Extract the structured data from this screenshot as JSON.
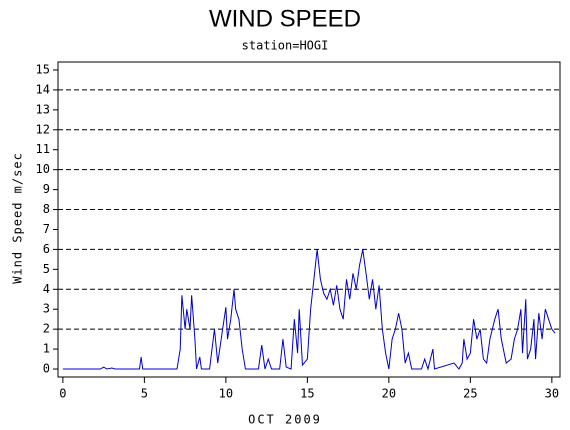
{
  "chart_data": {
    "type": "line",
    "title": "WIND SPEED",
    "subtitle": "station=HOGI",
    "x_label": "OCT 2009",
    "y_label": "Wind Speed m/sec",
    "xlim": [
      -0.3,
      30.5
    ],
    "ylim": [
      -0.4,
      15.4
    ],
    "xticks": [
      0,
      5,
      10,
      15,
      20,
      25,
      30
    ],
    "yticks": [
      0,
      1,
      2,
      3,
      4,
      5,
      6,
      7,
      8,
      9,
      10,
      11,
      12,
      13,
      14,
      15
    ],
    "grid_lines": [
      2,
      4,
      6,
      8,
      10,
      12,
      14
    ],
    "series": [
      {
        "color": "#0000cc",
        "x": [
          0,
          2.3,
          2.5,
          2.7,
          3.0,
          3.2,
          4.7,
          4.8,
          4.9,
          7.0,
          7.2,
          7.3,
          7.5,
          7.6,
          7.8,
          7.9,
          8.1,
          8.2,
          8.4,
          8.5,
          9.0,
          9.3,
          9.5,
          9.8,
          10.0,
          10.1,
          10.3,
          10.5,
          10.6,
          10.8,
          11.0,
          11.2,
          12.0,
          12.2,
          12.4,
          12.6,
          12.8,
          13.3,
          13.5,
          13.7,
          14.0,
          14.2,
          14.4,
          14.5,
          14.7,
          15.0,
          15.2,
          15.4,
          15.6,
          15.8,
          16.0,
          16.2,
          16.4,
          16.6,
          16.8,
          17.0,
          17.2,
          17.4,
          17.6,
          17.8,
          18.0,
          18.2,
          18.4,
          18.6,
          18.8,
          19.0,
          19.2,
          19.4,
          19.6,
          19.8,
          20.0,
          20.2,
          20.4,
          20.6,
          20.8,
          21.0,
          21.2,
          21.4,
          22.0,
          22.2,
          22.4,
          22.7,
          22.8,
          24.0,
          24.3,
          24.5,
          24.6,
          24.8,
          25.0,
          25.2,
          25.4,
          25.6,
          25.8,
          26.0,
          26.2,
          26.5,
          26.7,
          26.9,
          27.2,
          27.5,
          27.7,
          27.9,
          28.1,
          28.2,
          28.4,
          28.5,
          28.7,
          28.9,
          29.0,
          29.2,
          29.4,
          29.6,
          29.8,
          30.0,
          30.2
        ],
        "values": [
          0,
          0,
          0.1,
          0,
          0.05,
          0,
          0,
          0.6,
          0,
          0,
          1,
          3.7,
          2,
          3,
          2,
          3.7,
          1.5,
          0,
          0.6,
          0,
          0,
          2,
          0.3,
          2,
          3.1,
          1.5,
          2.5,
          4.0,
          3,
          2.5,
          1,
          0,
          0,
          1.2,
          0,
          0.5,
          0,
          0,
          1.5,
          0.1,
          0,
          2.5,
          0.8,
          3.0,
          0.2,
          0.5,
          3,
          4.5,
          6,
          4.5,
          3.8,
          3.5,
          4.0,
          3.2,
          4.2,
          3.0,
          2.5,
          4.5,
          3.5,
          4.8,
          4.0,
          5.2,
          6.0,
          4.8,
          3.5,
          4.5,
          3.0,
          4.2,
          2.0,
          0.8,
          0,
          1.5,
          2.0,
          2.8,
          2.0,
          0.3,
          0.8,
          0,
          0,
          0.5,
          0,
          1,
          0,
          0.3,
          0,
          0.3,
          1.5,
          0.5,
          0.8,
          2.5,
          1.5,
          2.0,
          0.5,
          0.3,
          1.5,
          2.5,
          3.0,
          1.5,
          0.3,
          0.5,
          1.5,
          2.0,
          3.0,
          0.8,
          3.5,
          0.5,
          1.0,
          2.5,
          0.5,
          2.8,
          1.5,
          3.0,
          2.5,
          2.0,
          1.8
        ]
      }
    ]
  }
}
